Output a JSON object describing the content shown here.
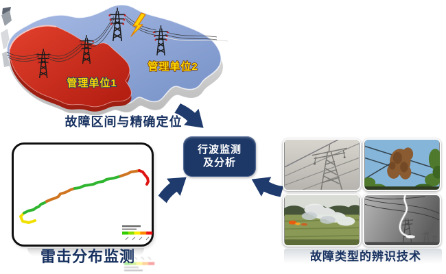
{
  "page": {
    "background": "#ffffff",
    "accent_navy": "#1d3867",
    "caption_color": "#16305f"
  },
  "map_panel": {
    "caption": "故障区间与精确定位",
    "region1_label": "管理单位1",
    "region2_label": "管理单位2",
    "region1_color": "#cf2a1b",
    "region2_color": "#8aa5d8",
    "label_fill": "#ffd700",
    "lightning_fill": "#ffd400",
    "lightning_stroke": "#e07a00"
  },
  "center_box": {
    "line1": "行波监测",
    "line2": "及分析",
    "fill": "#1d3867",
    "text_color": "#ffffff"
  },
  "lightning_chart": {
    "caption": "雷击分布监测",
    "chart_data": {
      "type": "line",
      "title": "",
      "grid": false,
      "legend_position": "bottom-right-inside",
      "legend_colors": [
        "#33cc00",
        "#8ade00",
        "#ffee00",
        "#ff8800",
        "#ee1111"
      ],
      "segments": [
        {
          "color": "#f0e000",
          "points": [
            [
              31,
              111
            ],
            [
              22,
              114
            ],
            [
              13,
              112
            ],
            [
              10,
              105
            ],
            [
              15,
              100
            ]
          ]
        },
        {
          "color": "#2fb52f",
          "points": [
            [
              15,
              100
            ],
            [
              21,
              97
            ],
            [
              29,
              95
            ],
            [
              33,
              92
            ],
            [
              36,
              91
            ],
            [
              40,
              87
            ],
            [
              45,
              85
            ],
            [
              48,
              83
            ]
          ]
        },
        {
          "color": "#cf7420",
          "points": [
            [
              48,
              83
            ],
            [
              55,
              80
            ],
            [
              61,
              78
            ],
            [
              65,
              76
            ],
            [
              68,
              72
            ],
            [
              75,
              70
            ],
            [
              83,
              66
            ],
            [
              89,
              64
            ]
          ]
        },
        {
          "color": "#2fb52f",
          "points": [
            [
              89,
              64
            ],
            [
              96,
              63
            ],
            [
              103,
              60
            ],
            [
              110,
              59
            ],
            [
              116,
              58
            ],
            [
              123,
              55
            ],
            [
              130,
              54
            ],
            [
              135,
              51
            ],
            [
              140,
              50
            ],
            [
              146,
              49
            ],
            [
              153,
              47
            ],
            [
              156,
              46
            ]
          ]
        },
        {
          "color": "#cf7420",
          "points": [
            [
              156,
              46
            ],
            [
              165,
              43
            ],
            [
              171,
              40
            ],
            [
              178,
              39
            ],
            [
              183,
              38
            ]
          ]
        },
        {
          "color": "#e01313",
          "points": [
            [
              183,
              38
            ],
            [
              188,
              40
            ],
            [
              191,
              44
            ],
            [
              195,
              49
            ],
            [
              196,
              54
            ],
            [
              194,
              58
            ]
          ]
        }
      ]
    }
  },
  "photos_panel": {
    "caption": "故障类型的辨识技术",
    "photos": [
      {
        "name": "damaged-tower-photo"
      },
      {
        "name": "tree-near-line-photo"
      },
      {
        "name": "wildfire-photo"
      },
      {
        "name": "lightning-strike-photo"
      }
    ]
  },
  "arrows": {
    "color": "#1f3b6d"
  }
}
